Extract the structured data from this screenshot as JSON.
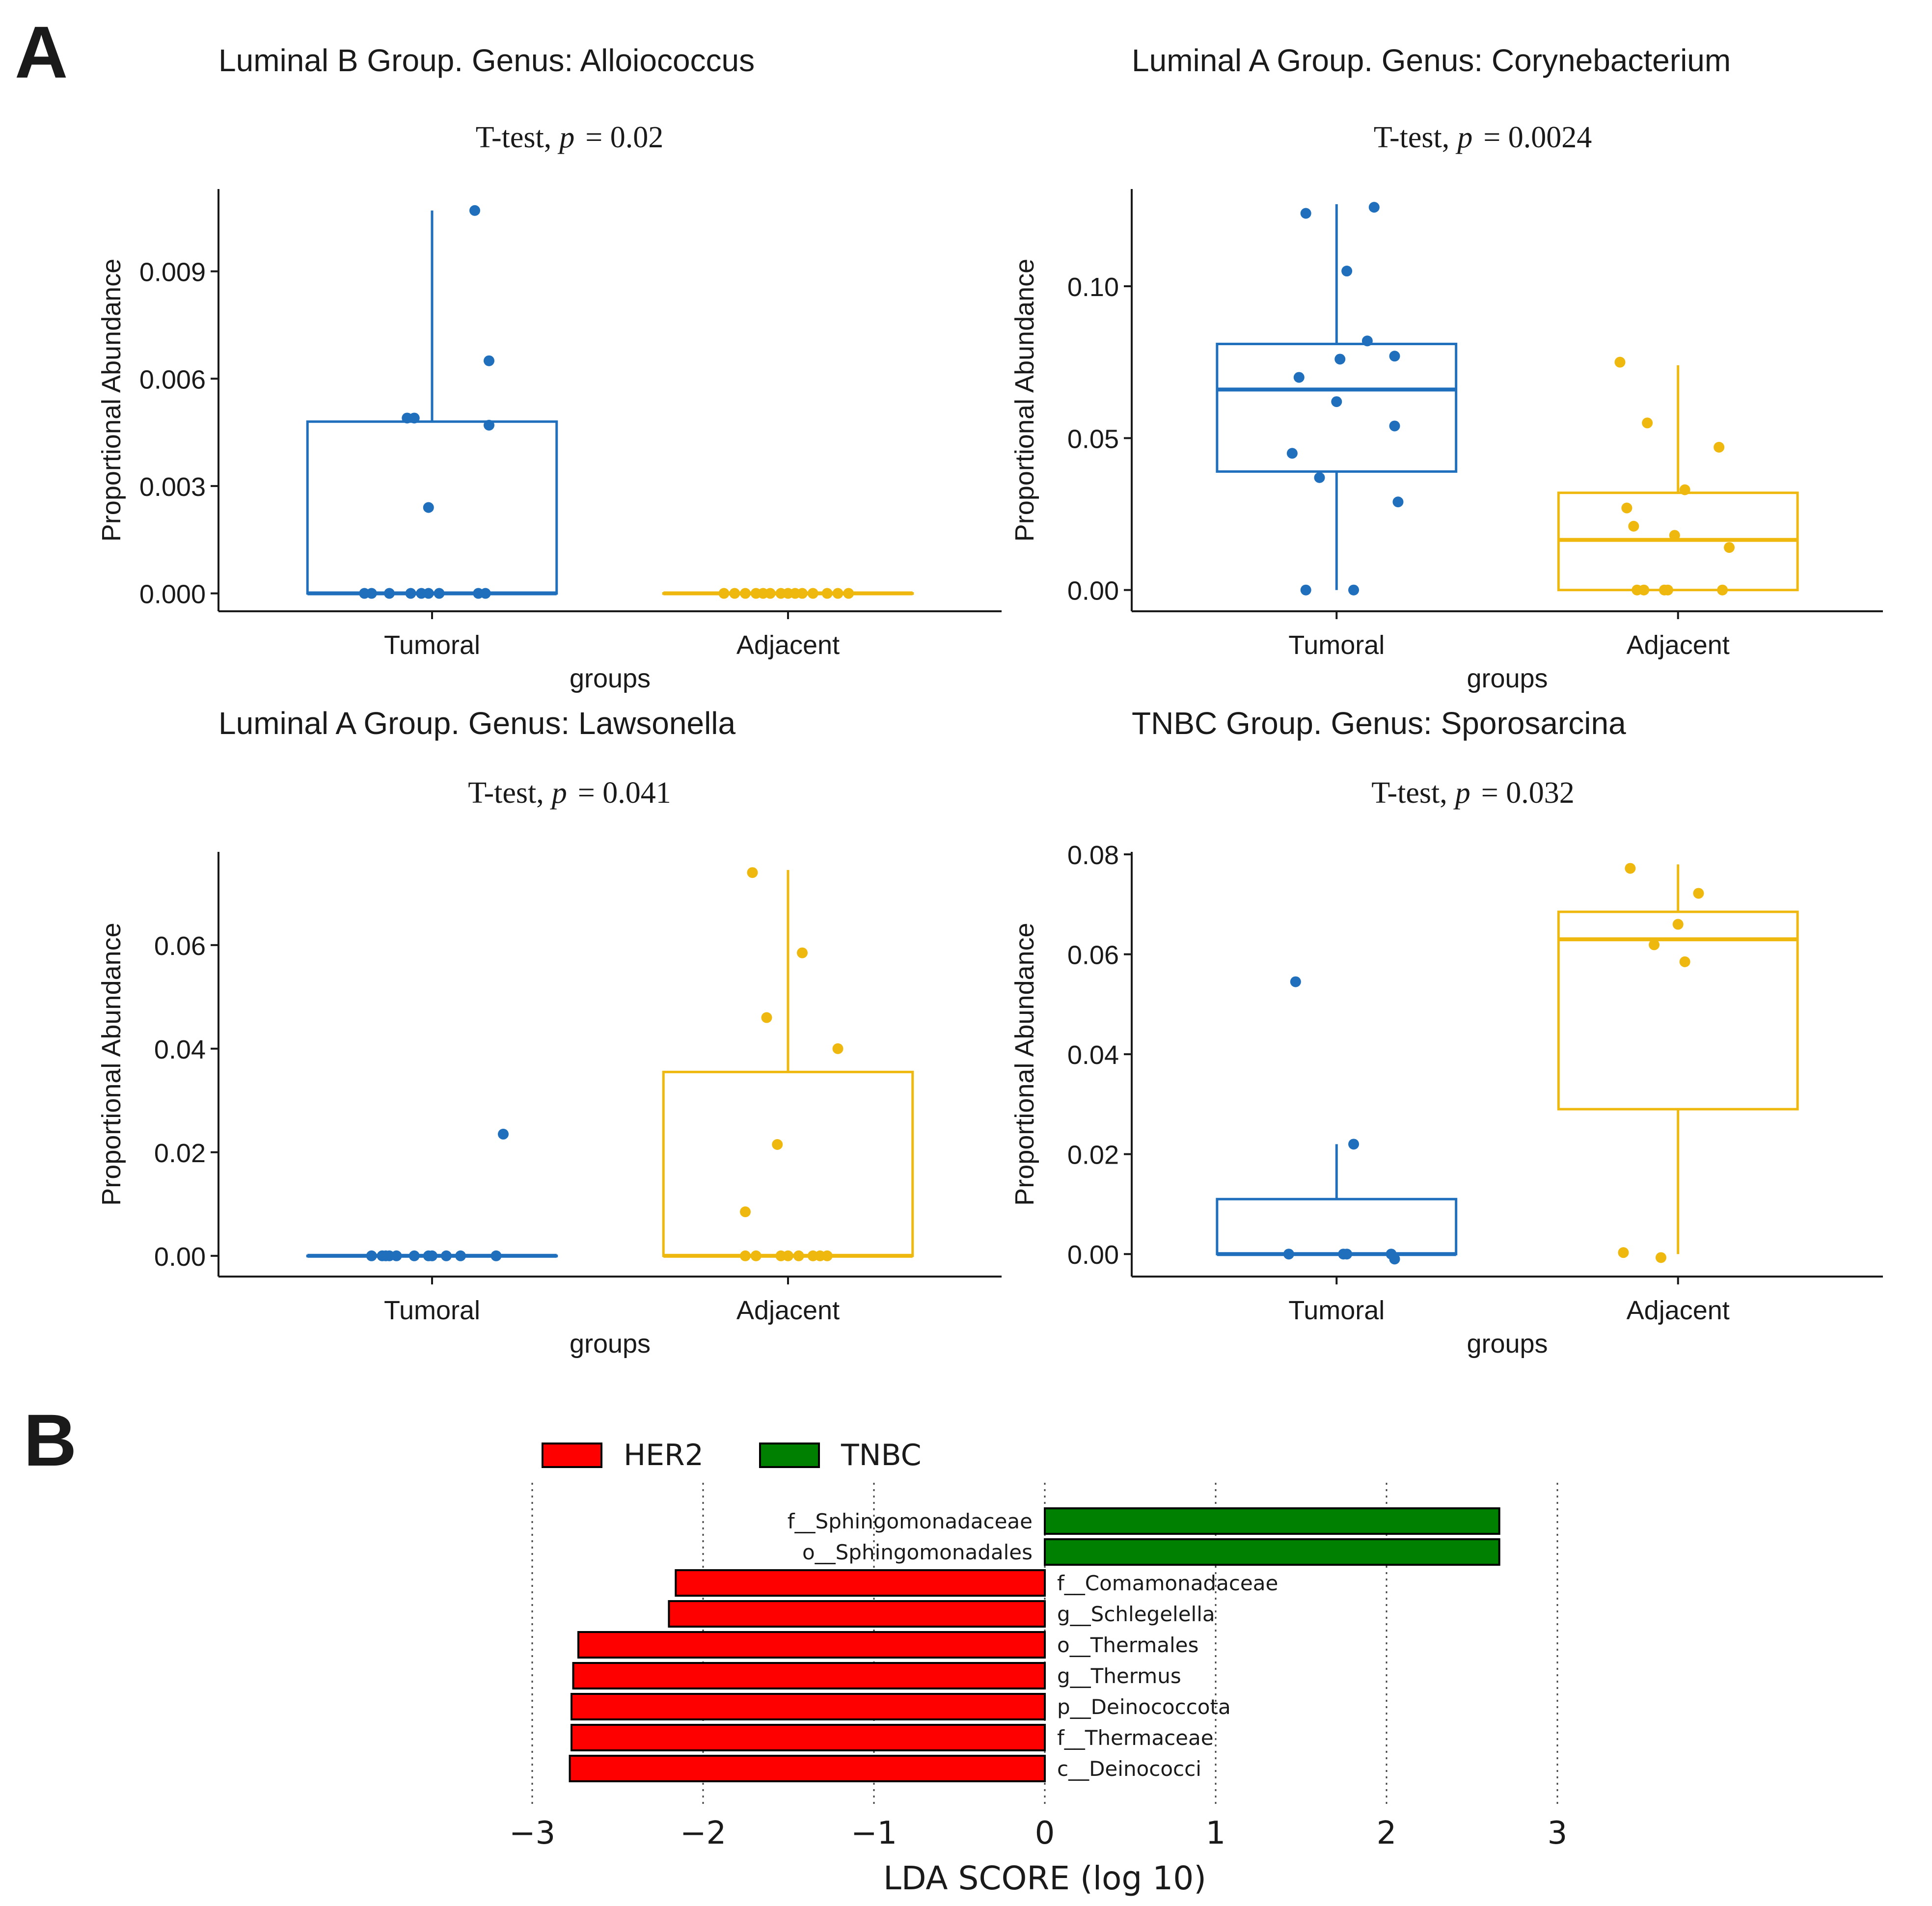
{
  "panel_a_label": "A",
  "panel_b_label": "B",
  "chart_data": [
    {
      "type": "box",
      "title": "Luminal B Group. Genus:  Alloiococcus",
      "test_label": "T-test,",
      "p_symbol": "p",
      "p_value": "= 0.02",
      "xlabel": "groups",
      "ylabel": "Proportional Abundance",
      "categories": [
        "Tumoral",
        "Adjacent"
      ],
      "colors": [
        "#1f6fbd",
        "#efb80e"
      ],
      "ylim": [
        -0.0005,
        0.0113
      ],
      "yticks": [
        0.0,
        0.003,
        0.006,
        0.009
      ],
      "ytick_labels": [
        "0.000",
        "0.003",
        "0.006",
        "0.009"
      ],
      "boxes": [
        {
          "q1": 0.0,
          "median": 0.0,
          "q3": 0.0048,
          "whisker_low": 0.0,
          "whisker_high": 0.0107
        },
        {
          "q1": 0.0,
          "median": 0.0,
          "q3": 0.0,
          "whisker_low": 0.0,
          "whisker_high": 0.0
        }
      ],
      "points": [
        [
          [
            -0.19,
            0.0
          ],
          [
            -0.17,
            0.0
          ],
          [
            -0.12,
            0.0
          ],
          [
            -0.06,
            0.0
          ],
          [
            -0.03,
            0.0
          ],
          [
            -0.01,
            0.0
          ],
          [
            0.02,
            0.0
          ],
          [
            0.13,
            0.0
          ],
          [
            0.15,
            0.0
          ],
          [
            0.12,
            0.0107
          ],
          [
            0.16,
            0.0047
          ],
          [
            0.16,
            0.0065
          ],
          [
            -0.05,
            0.0049
          ],
          [
            -0.07,
            0.0049
          ],
          [
            -0.01,
            0.0024
          ]
        ],
        [
          [
            -0.18,
            0.0
          ],
          [
            -0.15,
            0.0
          ],
          [
            -0.12,
            0.0
          ],
          [
            -0.09,
            0.0
          ],
          [
            -0.05,
            0.0
          ],
          [
            -0.02,
            0.0
          ],
          [
            0.0,
            0.0
          ],
          [
            0.04,
            0.0
          ],
          [
            0.07,
            0.0
          ],
          [
            0.11,
            0.0
          ],
          [
            0.14,
            0.0
          ],
          [
            0.17,
            0.0
          ],
          [
            -0.07,
            0.0
          ],
          [
            0.02,
            0.0
          ]
        ]
      ]
    },
    {
      "type": "box",
      "title": "Luminal A Group. Genus:  Corynebacterium",
      "test_label": "T-test,",
      "p_symbol": "p",
      "p_value": "= 0.0024",
      "xlabel": "groups",
      "ylabel": "Proportional Abundance",
      "categories": [
        "Tumoral",
        "Adjacent"
      ],
      "colors": [
        "#1f6fbd",
        "#efb80e"
      ],
      "ylim": [
        -0.007,
        0.132
      ],
      "yticks": [
        0.0,
        0.05,
        0.1
      ],
      "ytick_labels": [
        "0.00",
        "0.05",
        "0.10"
      ],
      "boxes": [
        {
          "q1": 0.039,
          "median": 0.066,
          "q3": 0.081,
          "whisker_low": 0.0,
          "whisker_high": 0.127
        },
        {
          "q1": 0.0,
          "median": 0.0165,
          "q3": 0.032,
          "whisker_low": 0.0,
          "whisker_high": 0.074
        }
      ],
      "points": [
        [
          [
            -0.09,
            0.124
          ],
          [
            0.11,
            0.126
          ],
          [
            0.03,
            0.105
          ],
          [
            0.09,
            0.082
          ],
          [
            0.17,
            0.077
          ],
          [
            0.01,
            0.076
          ],
          [
            -0.11,
            0.07
          ],
          [
            0.0,
            0.062
          ],
          [
            0.17,
            0.054
          ],
          [
            -0.13,
            0.045
          ],
          [
            -0.05,
            0.037
          ],
          [
            0.18,
            0.029
          ],
          [
            -0.09,
            0.0
          ],
          [
            0.05,
            0.0
          ]
        ],
        [
          [
            -0.17,
            0.075
          ],
          [
            -0.09,
            0.055
          ],
          [
            0.12,
            0.047
          ],
          [
            0.02,
            0.033
          ],
          [
            -0.15,
            0.027
          ],
          [
            -0.13,
            0.021
          ],
          [
            -0.01,
            0.018
          ],
          [
            0.15,
            0.014
          ],
          [
            -0.12,
            0.0
          ],
          [
            -0.1,
            0.0
          ],
          [
            -0.04,
            0.0
          ],
          [
            -0.03,
            0.0
          ],
          [
            0.13,
            0.0
          ]
        ]
      ]
    },
    {
      "type": "box",
      "title": "Luminal A Group. Genus:  Lawsonella",
      "test_label": "T-test,",
      "p_symbol": "p",
      "p_value": "= 0.041",
      "xlabel": "groups",
      "ylabel": "Proportional Abundance",
      "categories": [
        "Tumoral",
        "Adjacent"
      ],
      "colors": [
        "#1f6fbd",
        "#efb80e"
      ],
      "ylim": [
        -0.004,
        0.078
      ],
      "yticks": [
        0.0,
        0.02,
        0.04,
        0.06
      ],
      "ytick_labels": [
        "0.00",
        "0.02",
        "0.04",
        "0.06"
      ],
      "boxes": [
        {
          "q1": 0.0,
          "median": 0.0,
          "q3": 0.0,
          "whisker_low": 0.0,
          "whisker_high": 0.0
        },
        {
          "q1": 0.0,
          "median": 0.0,
          "q3": 0.0355,
          "whisker_low": 0.0,
          "whisker_high": 0.0745
        }
      ],
      "points": [
        [
          [
            0.2,
            0.0235
          ],
          [
            -0.17,
            0.0
          ],
          [
            -0.14,
            0.0
          ],
          [
            -0.12,
            0.0
          ],
          [
            -0.1,
            0.0
          ],
          [
            -0.05,
            0.0
          ],
          [
            -0.01,
            0.0
          ],
          [
            0.04,
            0.0
          ],
          [
            0.08,
            0.0
          ],
          [
            0.18,
            0.0
          ],
          [
            -0.13,
            0.0
          ],
          [
            0.0,
            0.0
          ]
        ],
        [
          [
            -0.1,
            0.074
          ],
          [
            0.04,
            0.0585
          ],
          [
            -0.06,
            0.046
          ],
          [
            0.14,
            0.04
          ],
          [
            -0.03,
            0.0215
          ],
          [
            -0.12,
            0.0085
          ],
          [
            -0.12,
            0.0
          ],
          [
            -0.09,
            0.0
          ],
          [
            -0.02,
            0.0
          ],
          [
            0.0,
            0.0
          ],
          [
            0.03,
            0.0
          ],
          [
            0.07,
            0.0
          ],
          [
            0.11,
            0.0
          ],
          [
            0.09,
            0.0
          ]
        ]
      ]
    },
    {
      "type": "box",
      "title": "TNBC Group. Genus:  Sporosarcina",
      "test_label": "T-test,",
      "p_symbol": "p",
      "p_value": "= 0.032",
      "xlabel": "groups",
      "ylabel": "Proportional Abundance",
      "categories": [
        "Tumoral",
        "Adjacent"
      ],
      "colors": [
        "#1f6fbd",
        "#efb80e"
      ],
      "ylim": [
        -0.0045,
        0.0805
      ],
      "yticks": [
        0.0,
        0.02,
        0.04,
        0.06,
        0.08
      ],
      "ytick_labels": [
        "0.00",
        "0.02",
        "0.04",
        "0.06",
        "0.08"
      ],
      "boxes": [
        {
          "q1": 0.0,
          "median": 0.0,
          "q3": 0.011,
          "whisker_low": 0.0,
          "whisker_high": 0.022
        },
        {
          "q1": 0.029,
          "median": 0.063,
          "q3": 0.0685,
          "whisker_low": 0.0,
          "whisker_high": 0.078
        }
      ],
      "points": [
        [
          [
            -0.12,
            0.0545
          ],
          [
            0.05,
            0.022
          ],
          [
            -0.14,
            0.0
          ],
          [
            0.02,
            0.0
          ],
          [
            0.03,
            0.0
          ],
          [
            0.16,
            0.0
          ],
          [
            0.17,
            -0.001
          ]
        ],
        [
          [
            -0.14,
            0.0772
          ],
          [
            0.06,
            0.0722
          ],
          [
            0.0,
            0.066
          ],
          [
            -0.07,
            0.0619
          ],
          [
            0.02,
            0.0585
          ],
          [
            -0.16,
            0.0003
          ],
          [
            -0.05,
            -0.0007
          ]
        ]
      ]
    },
    {
      "type": "bar",
      "orientation": "horizontal",
      "title": "",
      "xlabel": "LDA SCORE (log 10)",
      "xlim": [
        -3.15,
        3.15
      ],
      "xticks": [
        -3,
        -2,
        -1,
        0,
        1,
        2,
        3
      ],
      "xtick_labels": [
        "−3",
        "−2",
        "−1",
        "0",
        "1",
        "2",
        "3"
      ],
      "grid": true,
      "legend": [
        {
          "name": "HER2",
          "color": "#ff0000"
        },
        {
          "name": "TNBC",
          "color": "#008000"
        }
      ],
      "legend_placement": "top-left",
      "categories": [
        "f__Sphingomonadaceae",
        "o__Sphingomonadales",
        "f__Comamonadaceae",
        "g__Schlegelella",
        "o__Thermales",
        "g__Thermus",
        "p__Deinococcota",
        "f__Thermaceae",
        "c__Deinococci"
      ],
      "values": [
        2.66,
        2.66,
        -2.16,
        -2.2,
        -2.73,
        -2.76,
        -2.77,
        -2.77,
        -2.78
      ],
      "groups": [
        "TNBC",
        "TNBC",
        "HER2",
        "HER2",
        "HER2",
        "HER2",
        "HER2",
        "HER2",
        "HER2"
      ]
    }
  ]
}
